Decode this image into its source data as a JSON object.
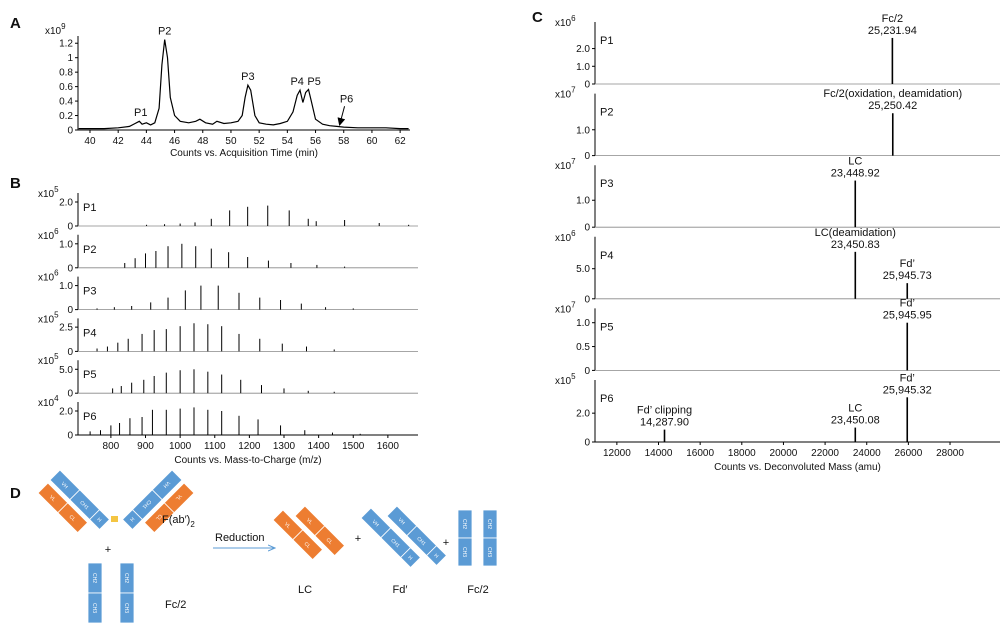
{
  "chart_data": [
    {
      "type": "line",
      "panel_label": "A",
      "x": [
        39.2,
        40,
        41,
        42,
        42.8,
        43.2,
        43.5,
        43.7,
        44,
        44.3,
        44.6,
        44.9,
        45.1,
        45.3,
        45.5,
        45.7,
        46,
        46.4,
        47,
        47.5,
        47.8,
        48.2,
        48.7,
        49,
        49.5,
        50,
        50.5,
        50.8,
        51,
        51.2,
        51.4,
        51.7,
        52,
        52.5,
        53,
        53.5,
        54,
        54.4,
        54.7,
        54.9,
        55.1,
        55.3,
        55.5,
        55.7,
        56,
        56.5,
        57,
        57.5,
        58,
        59,
        60,
        61,
        62,
        62.6
      ],
      "values": [
        0.02,
        0.02,
        0.02,
        0.03,
        0.05,
        0.09,
        0.12,
        0.08,
        0.1,
        0.07,
        0.1,
        0.3,
        0.9,
        1.25,
        1.0,
        0.45,
        0.2,
        0.12,
        0.1,
        0.12,
        0.15,
        0.1,
        0.08,
        0.12,
        0.09,
        0.1,
        0.12,
        0.2,
        0.45,
        0.62,
        0.55,
        0.2,
        0.1,
        0.08,
        0.07,
        0.09,
        0.12,
        0.25,
        0.48,
        0.55,
        0.38,
        0.52,
        0.56,
        0.4,
        0.15,
        0.08,
        0.06,
        0.05,
        0.04,
        0.03,
        0.03,
        0.03,
        0.02,
        0.02
      ],
      "color": "#000000",
      "xlim": [
        39.15,
        62.7
      ],
      "ylim": [
        0,
        1.3
      ],
      "xticks": [
        40,
        42,
        44,
        46,
        48,
        50,
        52,
        54,
        56,
        58,
        60,
        62
      ],
      "yticks": [
        0,
        0.2,
        0.4,
        0.6,
        0.8,
        1,
        1.2
      ],
      "y_scale": {
        "base": "x10",
        "exponent": "9"
      },
      "xlabel": "Counts vs. Acquisition Time (min)",
      "annotations": [
        {
          "text": "P1",
          "x": 43.6,
          "y": 0.15
        },
        {
          "text": "P2",
          "x": 45.3,
          "y": 1.28
        },
        {
          "text": "P3",
          "x": 51.2,
          "y": 0.65
        },
        {
          "text": "P4",
          "x": 54.7,
          "y": 0.58
        },
        {
          "text": "P5",
          "x": 55.9,
          "y": 0.58
        },
        {
          "text": "P6",
          "x": 58.2,
          "y": 0.3
        }
      ]
    },
    {
      "type": "spectra",
      "panel_label": "B",
      "color": "#000000",
      "xlim": [
        705,
        1687
      ],
      "xticks": [
        800,
        900,
        1000,
        1100,
        1200,
        1300,
        1400,
        1500,
        1600
      ],
      "xlabel": "Counts vs. Mass-to-Charge (m/z)",
      "subplots": [
        {
          "name": "P1",
          "y_scale": {
            "base": "x10",
            "exponent": "5"
          },
          "ylim": [
            0,
            2.75
          ],
          "yticks": [
            0,
            {
              "value": 2,
              "label": "2.0"
            }
          ],
          "x": [
            903,
            955,
            1000,
            1043,
            1090,
            1143,
            1195,
            1253,
            1315,
            1370,
            1393,
            1475,
            1575,
            1660
          ],
          "values": [
            0.1,
            0.15,
            0.2,
            0.3,
            0.6,
            1.3,
            1.6,
            1.7,
            1.3,
            0.6,
            0.4,
            0.5,
            0.25,
            0.1
          ]
        },
        {
          "name": "P2",
          "y_scale": {
            "base": "x10",
            "exponent": "6"
          },
          "ylim": [
            0,
            1.375
          ],
          "yticks": [
            0,
            {
              "value": 1,
              "label": "1.0"
            }
          ],
          "x": [
            840,
            870,
            900,
            930,
            965,
            1005,
            1045,
            1090,
            1140,
            1195,
            1255,
            1320,
            1395,
            1475
          ],
          "values": [
            0.2,
            0.4,
            0.6,
            0.7,
            0.9,
            1.0,
            0.9,
            0.8,
            0.65,
            0.45,
            0.3,
            0.2,
            0.12,
            0.05
          ]
        },
        {
          "name": "P3",
          "y_scale": {
            "base": "x10",
            "exponent": "6"
          },
          "ylim": [
            0,
            1.375
          ],
          "yticks": [
            0,
            {
              "value": 1,
              "label": "1.0"
            }
          ],
          "x": [
            760,
            810,
            860,
            915,
            965,
            1015,
            1060,
            1110,
            1170,
            1230,
            1290,
            1350,
            1420,
            1500
          ],
          "values": [
            0.05,
            0.1,
            0.15,
            0.3,
            0.5,
            0.8,
            1.0,
            1.0,
            0.7,
            0.5,
            0.4,
            0.25,
            0.1,
            0.05
          ]
        },
        {
          "name": "P4",
          "y_scale": {
            "base": "x10",
            "exponent": "5"
          },
          "ylim": [
            0,
            3.4
          ],
          "yticks": [
            0,
            2.5
          ],
          "x": [
            760,
            790,
            820,
            850,
            890,
            925,
            960,
            1000,
            1040,
            1080,
            1120,
            1170,
            1230,
            1295,
            1365,
            1445
          ],
          "values": [
            0.3,
            0.5,
            0.9,
            1.3,
            1.8,
            2.2,
            2.3,
            2.6,
            2.9,
            2.8,
            2.6,
            1.8,
            1.3,
            0.8,
            0.5,
            0.2
          ]
        },
        {
          "name": "P5",
          "y_scale": {
            "base": "x10",
            "exponent": "5"
          },
          "ylim": [
            0,
            6.9
          ],
          "yticks": [
            0,
            {
              "value": 5,
              "label": "5.0"
            }
          ],
          "x": [
            805,
            830,
            860,
            895,
            925,
            960,
            1000,
            1040,
            1080,
            1120,
            1175,
            1235,
            1300,
            1370,
            1445
          ],
          "values": [
            1.0,
            1.5,
            2.2,
            2.8,
            3.6,
            4.3,
            4.8,
            5.0,
            4.5,
            3.9,
            2.8,
            1.7,
            1.0,
            0.5,
            0.3
          ]
        },
        {
          "name": "P6",
          "y_scale": {
            "base": "x10",
            "exponent": "4"
          },
          "ylim": [
            0,
            2.75
          ],
          "yticks": [
            0,
            {
              "value": 2,
              "label": "2.0"
            }
          ],
          "x": [
            740,
            770,
            800,
            825,
            855,
            890,
            920,
            960,
            1000,
            1040,
            1080,
            1120,
            1170,
            1225,
            1290,
            1360,
            1440,
            1520
          ],
          "values": [
            0.3,
            0.4,
            0.8,
            1.0,
            1.4,
            1.5,
            2.1,
            2.1,
            2.2,
            2.3,
            2.1,
            2.0,
            1.6,
            1.3,
            0.8,
            0.4,
            0.2,
            0.1
          ]
        }
      ]
    },
    {
      "type": "spectra",
      "panel_label": "C",
      "color": "#000000",
      "xlim": [
        10950,
        30400
      ],
      "xticks": [
        12000,
        14000,
        16000,
        18000,
        20000,
        22000,
        24000,
        26000,
        28000
      ],
      "xlabel": "Counts vs. Deconvoluted Mass (amu)",
      "subplots": [
        {
          "name": "P1",
          "y_scale": {
            "base": "x10",
            "exponent": "6"
          },
          "ylim": [
            0,
            3.5
          ],
          "yticks": [
            0,
            {
              "value": 1,
              "label": "1.0"
            },
            {
              "value": 2,
              "label": "2.0"
            }
          ],
          "x": [
            25231.94
          ],
          "values": [
            2.6
          ],
          "peak_names": [
            "Fc/2"
          ],
          "x_labels": [
            "25,231.94"
          ]
        },
        {
          "name": "P2",
          "y_scale": {
            "base": "x10",
            "exponent": "7"
          },
          "ylim": [
            0,
            2.4
          ],
          "yticks": [
            0,
            {
              "value": 1,
              "label": "1.0"
            }
          ],
          "x": [
            25250.42
          ],
          "values": [
            1.64
          ],
          "peak_names": [
            "Fc/2(oxidation, deamidation)"
          ],
          "x_labels": [
            "25,250.42"
          ]
        },
        {
          "name": "P3",
          "y_scale": {
            "base": "x10",
            "exponent": "7"
          },
          "ylim": [
            0,
            2.3
          ],
          "yticks": [
            0,
            {
              "value": 1,
              "label": "1.0"
            }
          ],
          "x": [
            23448.92
          ],
          "values": [
            1.73
          ],
          "peak_names": [
            "LC"
          ],
          "x_labels": [
            "23,448.92"
          ]
        },
        {
          "name": "P4",
          "y_scale": {
            "base": "x10",
            "exponent": "6"
          },
          "ylim": [
            0,
            10.3
          ],
          "yticks": [
            0,
            {
              "value": 5,
              "label": "5.0"
            }
          ],
          "x": [
            23450.83,
            25945.73
          ],
          "values": [
            7.8,
            2.6
          ],
          "peak_names": [
            "LC(deamidation)",
            "Fd’"
          ],
          "x_labels": [
            "23,450.83",
            "25,945.73"
          ]
        },
        {
          "name": "P5",
          "y_scale": {
            "base": "x10",
            "exponent": "7"
          },
          "ylim": [
            0,
            1.3
          ],
          "yticks": [
            0,
            0.5,
            {
              "value": 1,
              "label": "1.0"
            }
          ],
          "x": [
            25945.95
          ],
          "values": [
            1.0
          ],
          "peak_names": [
            "Fd’"
          ],
          "x_labels": [
            "25,945.95"
          ]
        },
        {
          "name": "P6",
          "y_scale": {
            "base": "x10",
            "exponent": "5"
          },
          "ylim": [
            0,
            4.3
          ],
          "yticks": [
            0,
            {
              "value": 2,
              "label": "2.0"
            }
          ],
          "x": [
            14287.9,
            23450.08,
            25945.32
          ],
          "values": [
            0.86,
            1.0,
            3.1
          ],
          "peak_names": [
            "Fd’ clipping",
            "LC",
            "Fd’"
          ],
          "x_labels": [
            "14,287.90",
            "23,450.08",
            "25,945.32"
          ]
        }
      ]
    }
  ],
  "diagram": {
    "panel_label": "D",
    "fab": {
      "text": "F(ab′)",
      "sub": "2"
    },
    "fc": "Fc/2",
    "reduction": "Reduction",
    "plus": "+",
    "products": [
      "LC",
      "Fd′",
      "Fc/2"
    ],
    "domains": {
      "vh": "VH",
      "ch1": "CH1",
      "h": "H",
      "vl": "VL",
      "cl": "CL",
      "ch2": "CH2",
      "ch3": "CH3"
    }
  }
}
